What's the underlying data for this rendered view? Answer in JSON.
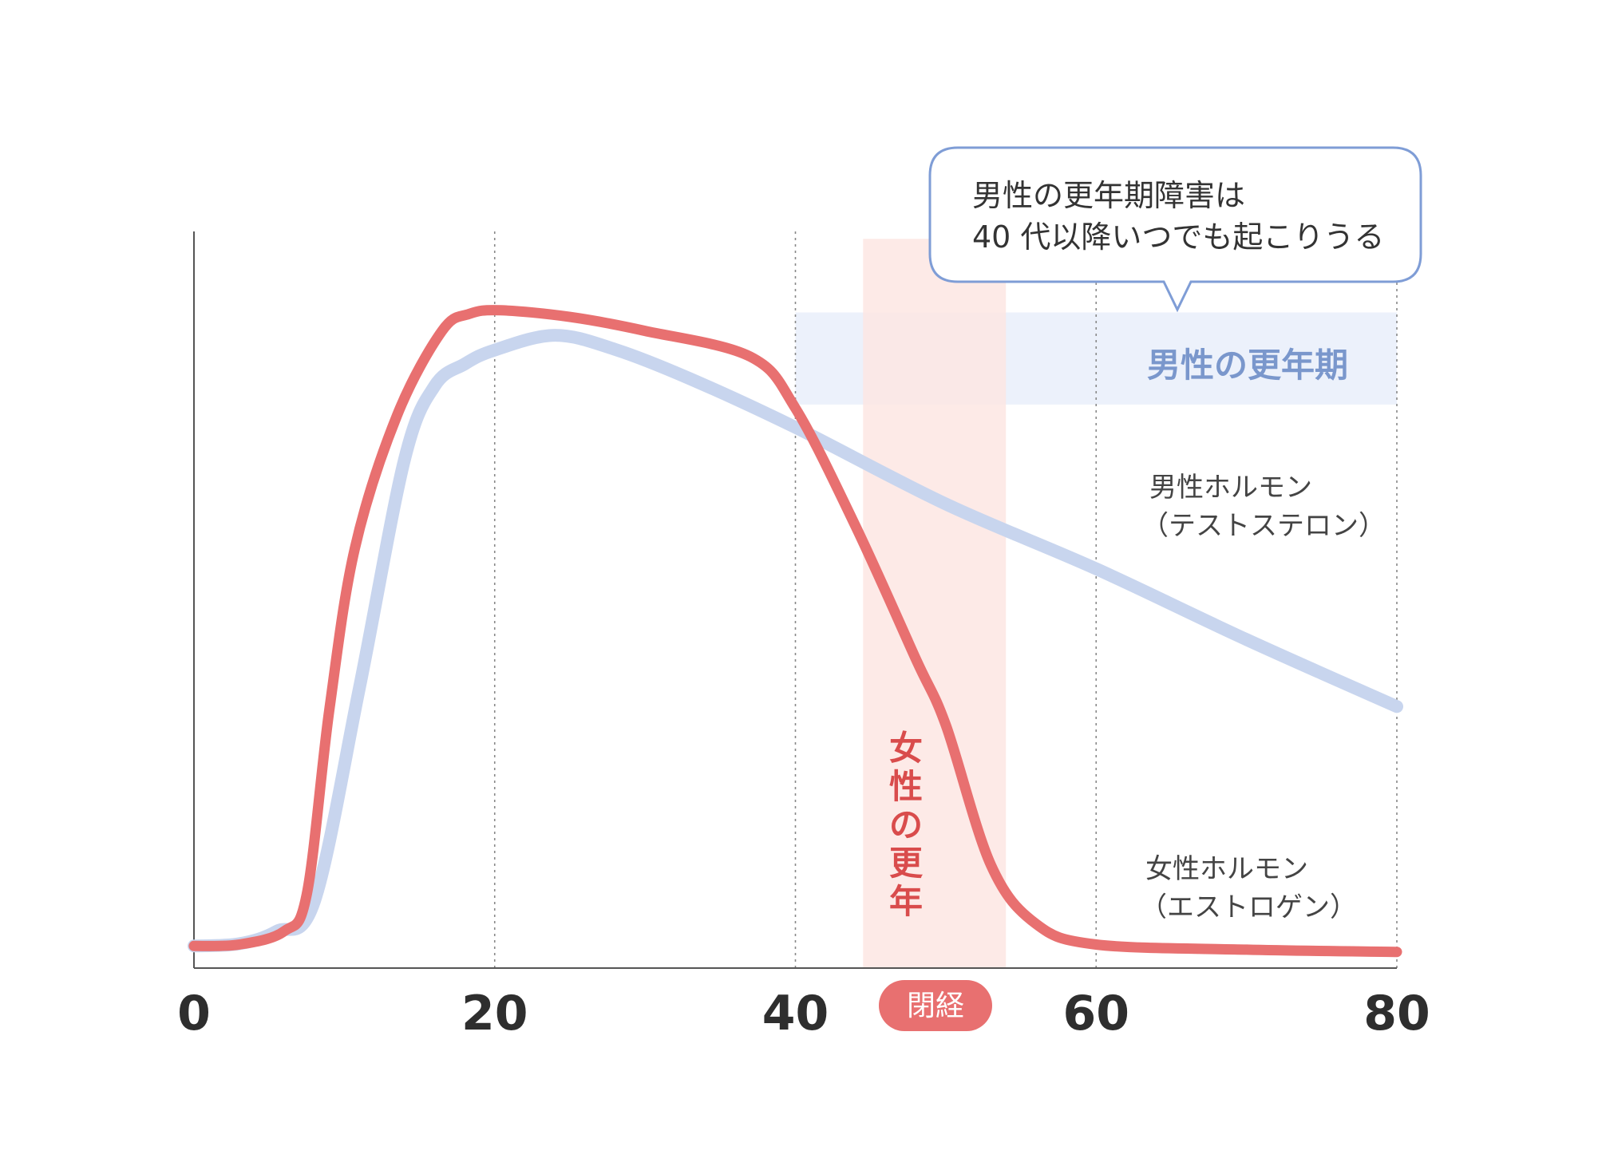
{
  "chart_data": {
    "type": "line",
    "x_ticks": [
      "0",
      "20",
      "40",
      "60",
      "80"
    ],
    "xlim": [
      0,
      80
    ],
    "ylim": [
      0,
      100
    ],
    "grid": "vertical-dotted",
    "series": [
      {
        "name": "男性ホルモン（テストステロン）",
        "label_lines": [
          "男性ホルモン",
          "（テストステロン）"
        ],
        "color": "#c8d5ee",
        "points": [
          [
            0,
            3
          ],
          [
            3,
            3.3
          ],
          [
            5.5,
            5
          ],
          [
            8,
            9
          ],
          [
            11,
            38
          ],
          [
            14,
            69
          ],
          [
            16,
            79
          ],
          [
            18,
            82
          ],
          [
            20,
            83.9
          ],
          [
            24,
            85.9
          ],
          [
            28,
            84
          ],
          [
            33,
            80
          ],
          [
            40,
            73.4
          ],
          [
            50,
            63
          ],
          [
            60,
            54.2
          ],
          [
            70,
            44.6
          ],
          [
            80,
            35.5
          ]
        ]
      },
      {
        "name": "女性ホルモン（エストロゲン）",
        "label_lines": [
          "女性ホルモン",
          "（エストロゲン）"
        ],
        "color": "#e87070",
        "points": [
          [
            0,
            3
          ],
          [
            3,
            3.2
          ],
          [
            6,
            5
          ],
          [
            7.5,
            10
          ],
          [
            9,
            35
          ],
          [
            10.7,
            57
          ],
          [
            13.5,
            75
          ],
          [
            16.5,
            86.5
          ],
          [
            18.3,
            88.8
          ],
          [
            20.4,
            89.3
          ],
          [
            25,
            88.4
          ],
          [
            30,
            86.5
          ],
          [
            37,
            83
          ],
          [
            40,
            76
          ],
          [
            44,
            60
          ],
          [
            48,
            42
          ],
          [
            50,
            33
          ],
          [
            53,
            14
          ],
          [
            56,
            6
          ],
          [
            60,
            3.2
          ],
          [
            70,
            2.5
          ],
          [
            80,
            2.2
          ]
        ]
      }
    ],
    "bands": [
      {
        "label": "男性の更年期",
        "x_range": [
          40,
          80
        ],
        "y_range": [
          76.5,
          89
        ],
        "color": "#ecf1fb",
        "label_color": "#7a97cc"
      },
      {
        "label": "女性の更年期",
        "x_range": [
          44.5,
          54
        ],
        "y_range": [
          0,
          99
        ],
        "color": "#fde6e3",
        "label_color": "#d94c4c"
      }
    ],
    "annotations": [
      {
        "text": "閉経",
        "type": "badge",
        "x": 49.5,
        "color": "#e87070"
      },
      {
        "type": "callout",
        "lines": [
          "男性の更年期障害は",
          "40 代以降いつでも起こりうる"
        ],
        "border_color": "#7f9dd6"
      }
    ]
  }
}
